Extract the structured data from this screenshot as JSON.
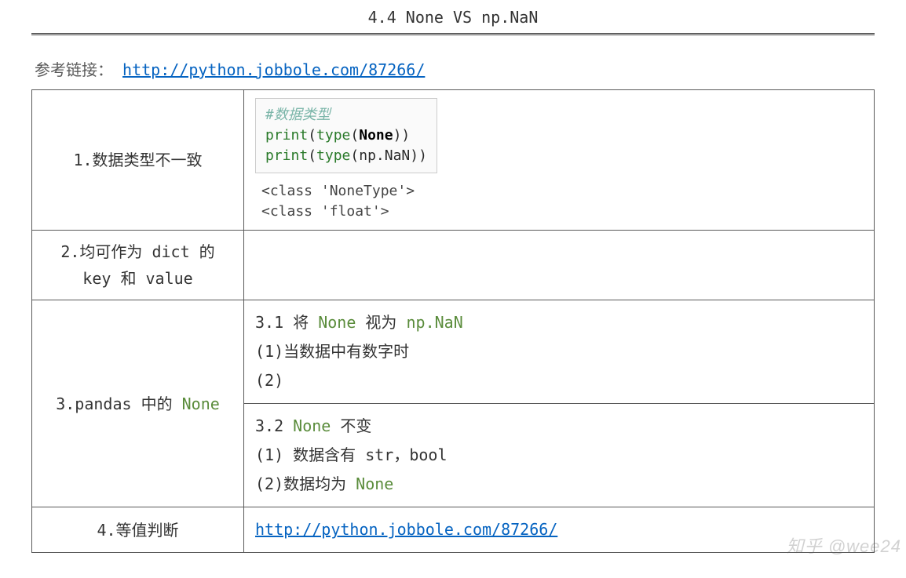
{
  "title": "4.4 None VS np.NaN",
  "ref": {
    "label": "参考链接：",
    "url": "http://python.jobbole.com/87266/"
  },
  "colors": {
    "link": "#0563c1",
    "green_kw": "#5a8c3b",
    "comment": "#7ab5a8",
    "func": "#2a7a2a",
    "border": "#5a5a5a",
    "codebox_border": "#cccccc",
    "codebox_bg": "#fafafa",
    "text": "#333333",
    "watermark": "rgba(90,90,90,0.28)"
  },
  "watermark": "知乎 @wee24",
  "rows": {
    "r1": {
      "left": "1.数据类型不一致",
      "code": {
        "comment": "#数据类型",
        "l1_func": "print",
        "l1_mid": "(",
        "l1_func2": "type",
        "l1_open": "(",
        "l1_bold": "None",
        "l1_close": "))",
        "l2_func": "print",
        "l2_mid": "(",
        "l2_func2": "type",
        "l2_open": "(np.NaN))"
      },
      "out1": "<class 'NoneType'>",
      "out2": "<class 'float'>"
    },
    "r2": {
      "left_l1": "2.均可作为 dict 的",
      "left_l2": "key 和 value"
    },
    "r3": {
      "left_pre": "3.pandas 中的 ",
      "left_kw": "None",
      "a": {
        "head_pre": "3.1 将 ",
        "head_kw": "None",
        "head_mid": " 视为 ",
        "head_kw2": "np.NaN",
        "l1": "(1)当数据中有数字时",
        "l2": "(2)"
      },
      "b": {
        "head_pre": "3.2 ",
        "head_kw": "None",
        "head_post": " 不变",
        "l1": "(1) 数据含有 str，bool",
        "l2_pre": "(2)数据均为 ",
        "l2_kw": "None"
      }
    },
    "r4": {
      "left": "4.等值判断",
      "url": "http://python.jobbole.com/87266/"
    }
  }
}
